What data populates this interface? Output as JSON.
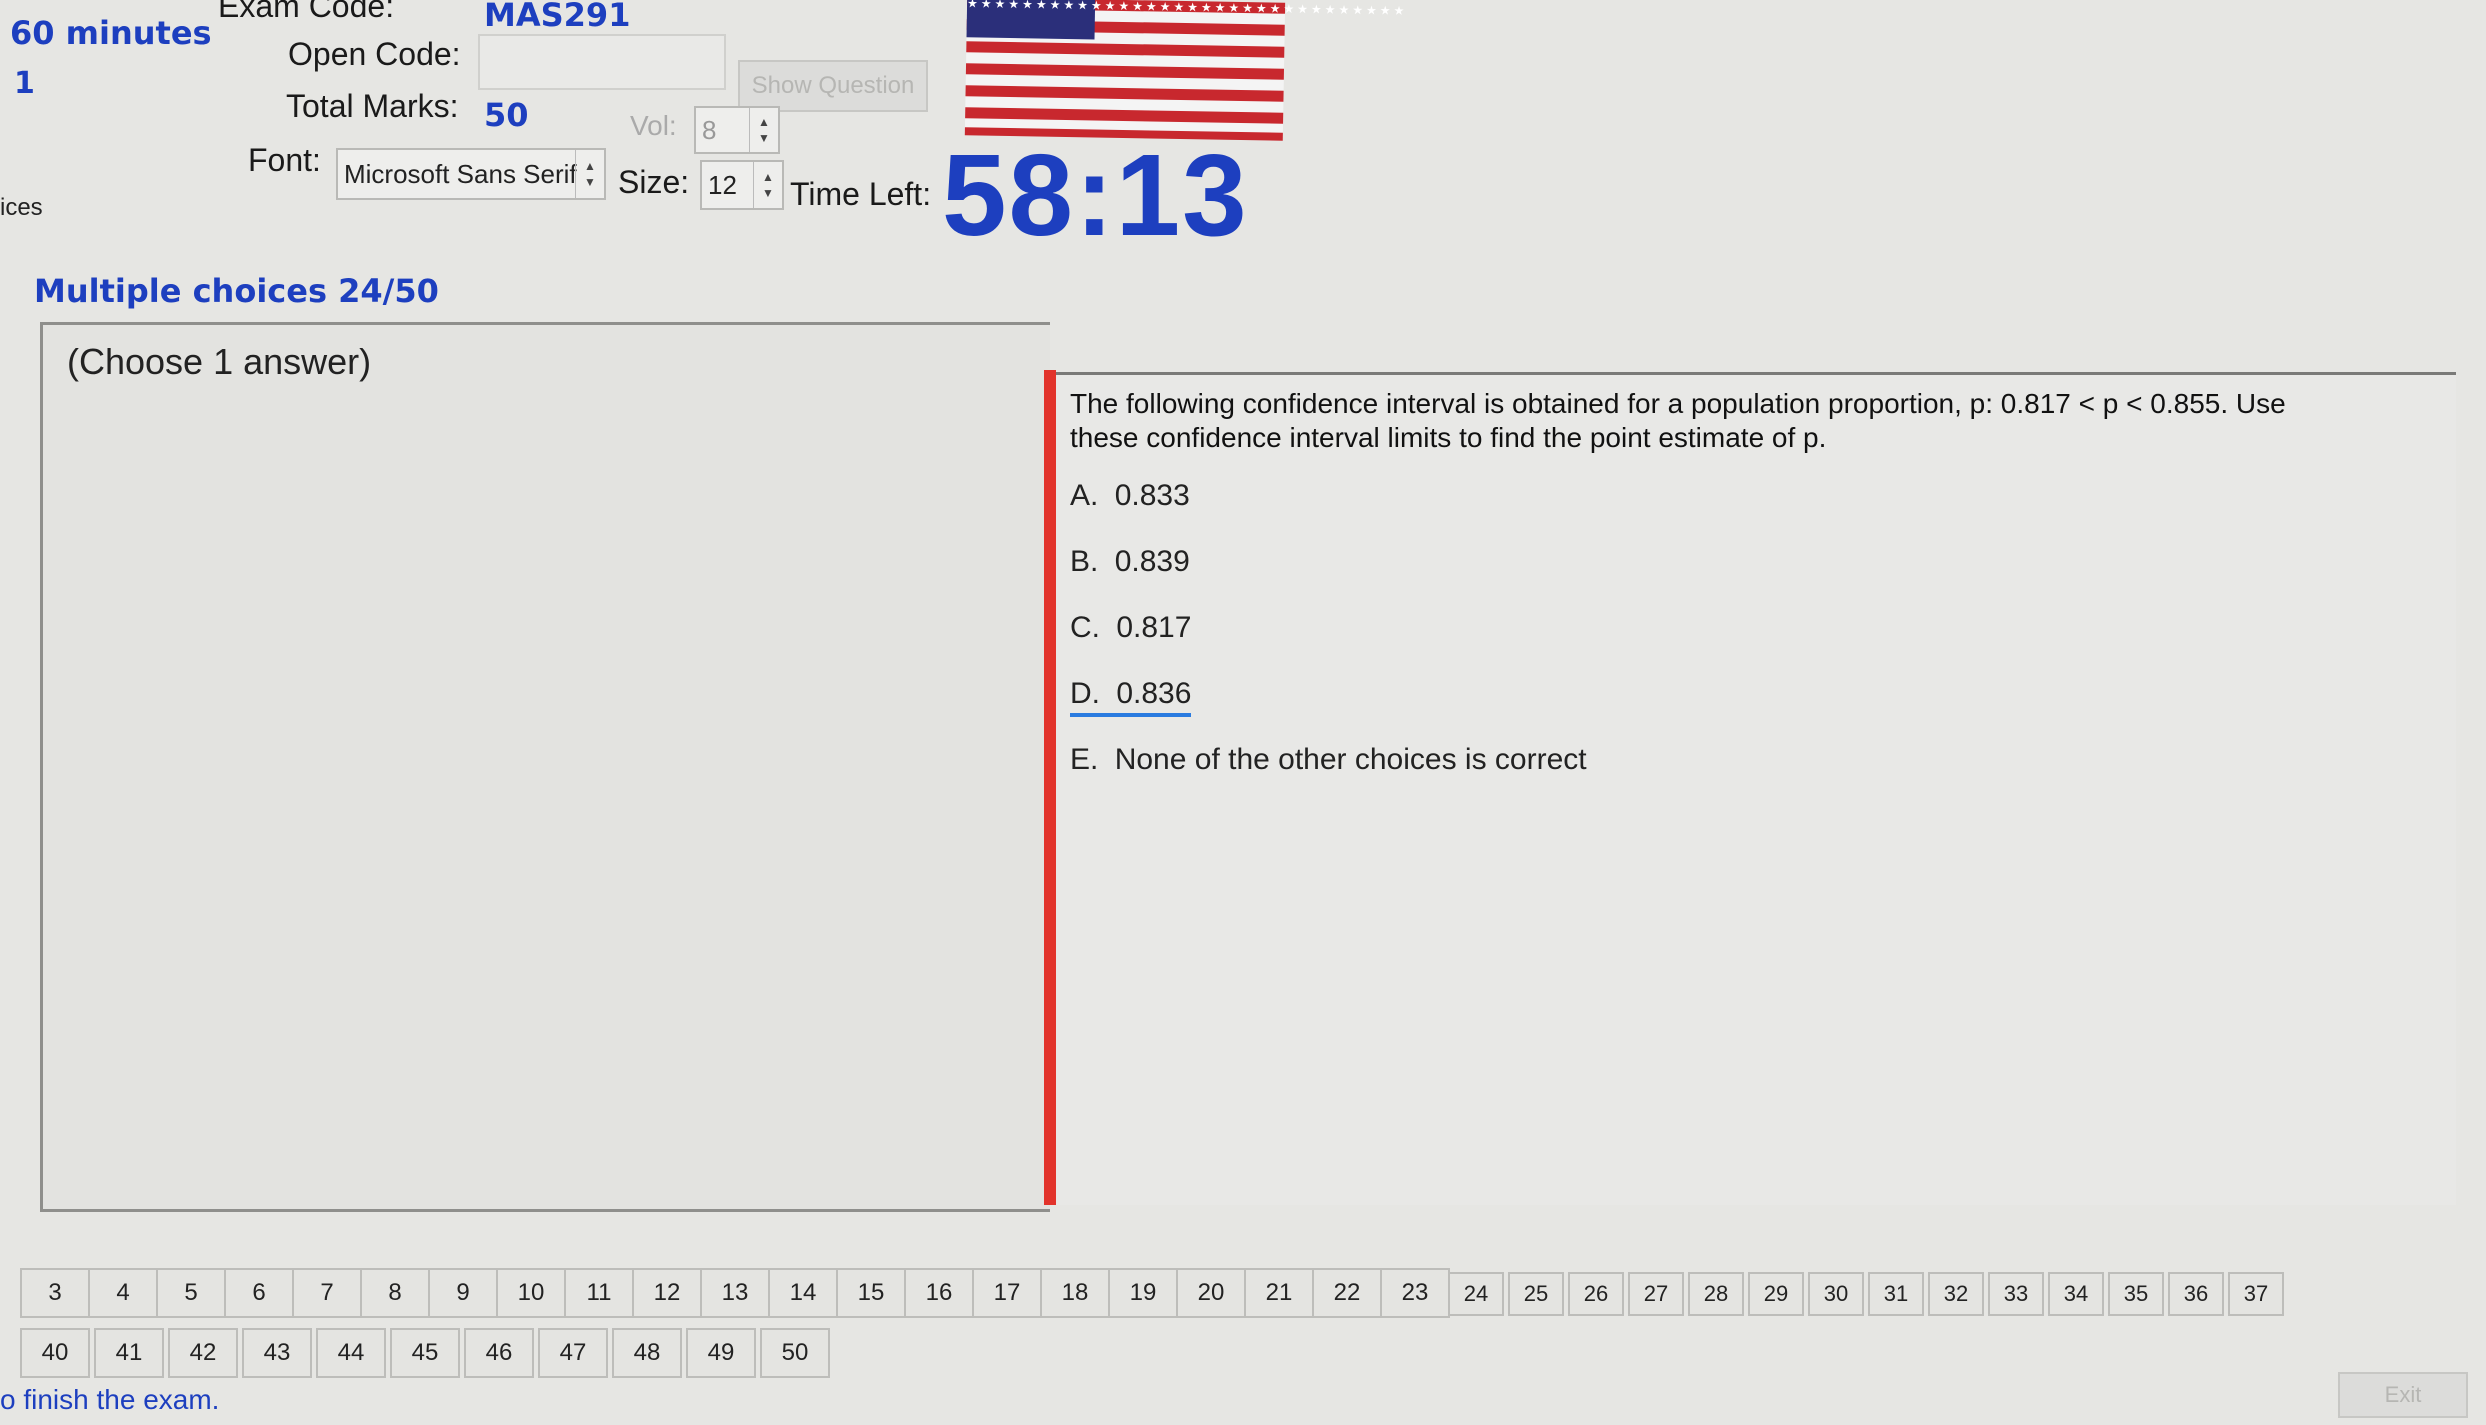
{
  "header": {
    "duration": "60 minutes",
    "left_number": "1",
    "left_label_partial": "ices",
    "exam_code_label": "Exam Code:",
    "exam_code_value": "MAS291",
    "open_code_label": "Open Code:",
    "open_code_value": "",
    "show_question_label": "Show Question",
    "total_marks_label": "Total Marks:",
    "total_marks_value": "50",
    "vol_label": "Vol:",
    "vol_value": "8",
    "font_label": "Font:",
    "font_value": "Microsoft Sans Serif",
    "size_label": "Size:",
    "size_value": "12",
    "time_left_label": "Time Left:",
    "time_left_value": "58:13"
  },
  "section": {
    "title": "Multiple choices 24/50",
    "instruction": "(Choose 1 answer)"
  },
  "question": {
    "text": "The following confidence interval is obtained for a population proportion, p: 0.817 < p < 0.855. Use these confidence interval limits to find the point estimate of p.",
    "choices": [
      {
        "letter": "A.",
        "text": "0.833"
      },
      {
        "letter": "B.",
        "text": "0.839"
      },
      {
        "letter": "C.",
        "text": "0.817"
      },
      {
        "letter": "D.",
        "text": "0.836"
      },
      {
        "letter": "E.",
        "text": "None of the other choices is correct"
      }
    ]
  },
  "nav": {
    "row1": [
      "3",
      "4",
      "5",
      "6",
      "7",
      "8",
      "9",
      "10",
      "11",
      "12",
      "13",
      "14",
      "15",
      "16",
      "17",
      "18",
      "19",
      "20",
      "21",
      "22",
      "23",
      "24",
      "25",
      "26",
      "27",
      "28",
      "29",
      "30",
      "31",
      "32",
      "33",
      "34",
      "35",
      "36",
      "37"
    ],
    "row2": [
      "40",
      "41",
      "42",
      "43",
      "44",
      "45",
      "46",
      "47",
      "48",
      "49",
      "50"
    ]
  },
  "footer": {
    "finish_text": "o finish the exam.",
    "exit_label": "Exit"
  },
  "colors": {
    "accent_blue": "#1d3fbf",
    "red_bar": "#e2332b",
    "underline_blue": "#2a7be0"
  }
}
